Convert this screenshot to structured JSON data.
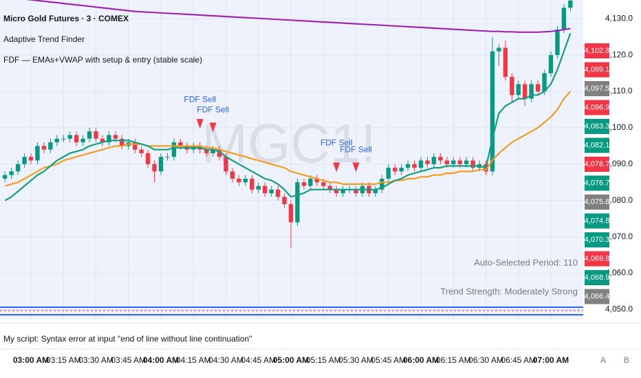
{
  "chart_data": {
    "type": "candlestick",
    "title": "Micro Gold Futures · 3 · COMEX",
    "indicators": [
      "Adaptive Trend Finder",
      "FDF — EMAs+VWAP with setup & entry (stable scale)"
    ],
    "watermark": "MGC1!",
    "categories": [
      null,
      null,
      null,
      null,
      "03:00 AM",
      null,
      null,
      null,
      null,
      "03:15 AM",
      null,
      null,
      null,
      null,
      "03:30 AM",
      null,
      null,
      null,
      null,
      "03:45 AM",
      null,
      null,
      null,
      null,
      "04:00 AM",
      null,
      null,
      null,
      null,
      "04:15 AM",
      null,
      null,
      null,
      null,
      "04:30 AM",
      null,
      null,
      null,
      null,
      "04:45 AM",
      null,
      null,
      null,
      null,
      "05:00 AM",
      null,
      null,
      null,
      null,
      "05:15 AM",
      null,
      null,
      null,
      null,
      "05:30 AM",
      null,
      null,
      null,
      null,
      "05:45 AM",
      null,
      null,
      null,
      null,
      "06:00 AM",
      null,
      null,
      null,
      null,
      "06:15 AM",
      null,
      null,
      null,
      null,
      "06:30 AM",
      null,
      null,
      null,
      null,
      "06:45 AM",
      null,
      null,
      null,
      null,
      "07:00 AM",
      null,
      null,
      null
    ],
    "open": [
      4086,
      4087,
      4088,
      4090,
      4092,
      4091,
      4095,
      4094,
      4096,
      4097,
      4097,
      4098,
      4096,
      4097,
      4099,
      4097,
      4096,
      4098,
      4097,
      4095,
      4096,
      4094,
      4093,
      4090,
      4088,
      4092,
      4092,
      4096,
      4095,
      4094,
      4095,
      4094,
      4093,
      4094,
      4092,
      4088,
      4086,
      4085,
      4086,
      4083,
      4084,
      4082,
      4083,
      4081,
      4079,
      4074,
      4085,
      4084,
      4086,
      4085,
      4084,
      4083,
      4082,
      4083,
      4083,
      4082,
      4084,
      4082,
      4083,
      4086,
      4089,
      4088,
      4089,
      4090,
      4089,
      4091,
      4090,
      4092,
      4091,
      4090,
      4091,
      4090,
      4091,
      4089,
      4090,
      4088,
      4121,
      4122,
      4114,
      4109,
      4112,
      4108,
      4112,
      4110,
      4115,
      4120,
      4127,
      4133
    ],
    "high": [
      4088,
      4089,
      4091,
      4093,
      4093,
      4096,
      4096,
      4097,
      4098,
      4098,
      4099,
      4099,
      4098,
      4100,
      4100,
      4098,
      4099,
      4099,
      4098,
      4097,
      4097,
      4095,
      4094,
      4091,
      4093,
      4093,
      4097,
      4097,
      4096,
      4096,
      4096,
      4095,
      4095,
      4095,
      4093,
      4089,
      4087,
      4087,
      4087,
      4085,
      4085,
      4084,
      4084,
      4082,
      4080,
      4086,
      4086,
      4087,
      4087,
      4086,
      4085,
      4084,
      4084,
      4084,
      4084,
      4085,
      4085,
      4084,
      4087,
      4090,
      4090,
      4090,
      4091,
      4091,
      4092,
      4092,
      4093,
      4093,
      4092,
      4092,
      4092,
      4092,
      4092,
      4091,
      4091,
      4125,
      4123,
      4124,
      4115,
      4113,
      4113,
      4113,
      4113,
      4116,
      4121,
      4128,
      4134,
      4136
    ],
    "low": [
      4085,
      4086,
      4087,
      4089,
      4090,
      4090,
      4093,
      4093,
      4095,
      4096,
      4096,
      4095,
      4095,
      4096,
      4096,
      4095,
      4095,
      4096,
      4094,
      4094,
      4093,
      4092,
      4089,
      4085,
      4087,
      4091,
      4091,
      4094,
      4093,
      4093,
      4093,
      4092,
      4092,
      4091,
      4087,
      4085,
      4084,
      4084,
      4082,
      4082,
      4081,
      4081,
      4080,
      4078,
      4067,
      4073,
      4083,
      4083,
      4084,
      4083,
      4082,
      4081,
      4081,
      4082,
      4081,
      4081,
      4081,
      4081,
      4082,
      4085,
      4087,
      4087,
      4088,
      4088,
      4088,
      4089,
      4089,
      4090,
      4089,
      4089,
      4089,
      4089,
      4088,
      4088,
      4087,
      4087,
      4117,
      4113,
      4107,
      4108,
      4106,
      4107,
      4109,
      4109,
      4114,
      4119,
      4126,
      4132
    ],
    "close": [
      4087,
      4088,
      4090,
      4092,
      4091,
      4095,
      4094,
      4096,
      4097,
      4097,
      4098,
      4096,
      4097,
      4099,
      4097,
      4096,
      4098,
      4097,
      4095,
      4096,
      4094,
      4093,
      4090,
      4088,
      4092,
      4092,
      4096,
      4095,
      4094,
      4095,
      4094,
      4093,
      4094,
      4092,
      4088,
      4086,
      4085,
      4086,
      4083,
      4084,
      4082,
      4083,
      4081,
      4079,
      4074,
      4085,
      4084,
      4086,
      4085,
      4084,
      4083,
      4082,
      4083,
      4083,
      4082,
      4084,
      4082,
      4083,
      4086,
      4089,
      4088,
      4089,
      4090,
      4089,
      4091,
      4090,
      4092,
      4091,
      4090,
      4091,
      4090,
      4091,
      4089,
      4090,
      4088,
      4121,
      4122,
      4114,
      4109,
      4112,
      4108,
      4112,
      4110,
      4115,
      4120,
      4127,
      4133,
      4135
    ],
    "up_color": "#089981",
    "down_color": "#f23645",
    "lines": [
      {
        "color": "#f39c1e",
        "values": [
          4084,
          4084.5,
          4085,
          4086,
          4087,
          4088,
          4089,
          4089.5,
          4090,
          4091,
          4091.5,
          4092,
          4092.5,
          4093,
          4093.5,
          4094,
          4094.5,
          4095,
          4095,
          4095.5,
          4095.5,
          4095.5,
          4095,
          4095,
          4095,
          4095,
          4095,
          4095,
          4095,
          4095,
          4095,
          4094.5,
          4094.5,
          4094,
          4093.5,
          4093,
          4092.5,
          4092,
          4091.5,
          4091,
          4090.5,
          4090,
          4089.5,
          4089,
          4088,
          4087.5,
          4087,
          4086.5,
          4086,
          4085.5,
          4085,
          4085,
          4084.5,
          4084.5,
          4084.5,
          4084.5,
          4084.5,
          4084.5,
          4085,
          4085,
          4085.5,
          4085.5,
          4086,
          4086,
          4086.5,
          4086.5,
          4087,
          4087,
          4087.5,
          4087.5,
          4088,
          4088,
          4088,
          4088.5,
          4088.5,
          4091,
          4093,
          4094.5,
          4096,
          4097,
          4098,
          4099,
          4100,
          4101.5,
          4103,
          4105,
          4108,
          4110
        ]
      },
      {
        "color": "#129e82",
        "values": [
          4080,
          4081,
          4082.5,
          4084,
          4085.5,
          4087,
          4088,
          4089.5,
          4091,
          4092,
          4093,
          4093.5,
          4094,
          4095,
          4095.5,
          4096,
          4096.5,
          4096.5,
          4096.5,
          4096.5,
          4096,
          4095.5,
          4095,
          4094,
          4094,
          4094,
          4094.5,
          4094.5,
          4094.5,
          4094.5,
          4094.5,
          4094,
          4094,
          4093.5,
          4092,
          4091,
          4090,
          4089,
          4088,
          4087,
          4086,
          4085.5,
          4084.5,
          4083,
          4081,
          4081.5,
          4082,
          4083,
          4083,
          4083,
          4083,
          4083,
          4083,
          4083,
          4083,
          4083,
          4083,
          4083,
          4083.5,
          4084.5,
          4085.5,
          4086,
          4087,
          4087.5,
          4088,
          4088.5,
          4089,
          4089,
          4089.5,
          4089.5,
          4089.5,
          4089.5,
          4089.5,
          4089.5,
          4089,
          4097,
          4104,
          4106,
          4107,
          4108,
          4108,
          4109,
          4109,
          4110,
          4112,
          4116,
          4121,
          4126
        ]
      },
      {
        "color": "#9c27b0",
        "values": [
          4136,
          4135.8,
          4135.6,
          4135.4,
          4135.2,
          4135,
          4134.8,
          4134.6,
          4134.4,
          4134.2,
          4134,
          4133.8,
          4133.6,
          4133.4,
          4133.2,
          4133,
          4132.8,
          4132.6,
          4132.4,
          4132.2,
          4132,
          4131.9,
          4131.8,
          4131.7,
          4131.6,
          4131.5,
          4131.4,
          4131.3,
          4131.2,
          4131.1,
          4131,
          4130.9,
          4130.8,
          4130.7,
          4130.6,
          4130.5,
          4130.4,
          4130.3,
          4130.2,
          4130.1,
          4130,
          4129.9,
          4129.8,
          4129.7,
          4129.6,
          4129.5,
          4129.4,
          4129.3,
          4129.2,
          4129.1,
          4129,
          4128.9,
          4128.8,
          4128.7,
          4128.6,
          4128.5,
          4128.4,
          4128.3,
          4128.2,
          4128.1,
          4128,
          4127.9,
          4127.8,
          4127.7,
          4127.6,
          4127.5,
          4127.4,
          4127.3,
          4127.2,
          4127.1,
          4127,
          4126.9,
          4126.8,
          4126.7,
          4126.6,
          4126.5,
          4126.5,
          4126.4,
          4126.4,
          4126.3,
          4126.3,
          4126.3,
          4126.3,
          4126.4,
          4126.5,
          4126.7,
          4127,
          4127.3
        ]
      }
    ],
    "signals": [
      null,
      null,
      null,
      null,
      null,
      null,
      null,
      null,
      null,
      null,
      null,
      null,
      null,
      null,
      null,
      null,
      null,
      null,
      null,
      null,
      null,
      null,
      null,
      null,
      null,
      null,
      null,
      null,
      null,
      null,
      "FDF Sell",
      null,
      "FDF Sell",
      null,
      null,
      null,
      null,
      null,
      null,
      null,
      null,
      null,
      null,
      null,
      null,
      null,
      null,
      null,
      null,
      null,
      null,
      "FDF Sell",
      null,
      null,
      "FDF Sell",
      null,
      null,
      null,
      null,
      null,
      null,
      null,
      null,
      null,
      null,
      null,
      null,
      null,
      null,
      null,
      null,
      null,
      null,
      null,
      null,
      null,
      null,
      null,
      null,
      null,
      null,
      null,
      null,
      null,
      null,
      null,
      null,
      null
    ],
    "signal_color": "#f23645",
    "ylim": [
      4049.7,
      4132.5
    ],
    "yticks": [
      {
        "value": 4050,
        "label": "4,050.0"
      },
      {
        "value": 4060,
        "label": "4,060.0"
      },
      {
        "value": 4070,
        "label": "4,070.0"
      },
      {
        "value": 4080,
        "label": "4,080.0"
      },
      {
        "value": 4090,
        "label": "4,090.0"
      },
      {
        "value": 4100,
        "label": "4,100.0"
      },
      {
        "value": 4110,
        "label": "4,110.0"
      },
      {
        "value": 4120,
        "label": "4,120.0"
      },
      {
        "value": 4130,
        "label": "4,130.0"
      }
    ],
    "grid": true,
    "price_tags": [
      {
        "label": "4,102.8",
        "color": "#f23645"
      },
      {
        "label": "4,099.1",
        "color": "#f23645"
      },
      {
        "label": "4,097.5",
        "color": "#808080"
      },
      {
        "label": "4,096.9",
        "color": "#f23645"
      },
      {
        "label": "4,083.3",
        "color": "#089981"
      },
      {
        "label": "4,082.1",
        "color": "#089981"
      },
      {
        "label": "4,078.7",
        "color": "#f23645"
      },
      {
        "label": "4,076.7",
        "color": "#089981"
      },
      {
        "label": "4,075.8",
        "color": "#808080"
      },
      {
        "label": "4,074.8",
        "color": "#089981"
      },
      {
        "label": "4,070.3",
        "color": "#089981"
      },
      {
        "label": "4,069.8",
        "color": "#f23645"
      },
      {
        "label": "4,068.9",
        "color": "#089981"
      },
      {
        "label": "4,066.4",
        "color": "#808080"
      }
    ],
    "annotations": [
      "Auto-Selected Period: 110",
      "Trend Strength: Moderately Strong"
    ],
    "status_message": "My script: Syntax error at input \"end of line without line continuation\"",
    "footer_buttons": [
      "A",
      "B"
    ]
  }
}
